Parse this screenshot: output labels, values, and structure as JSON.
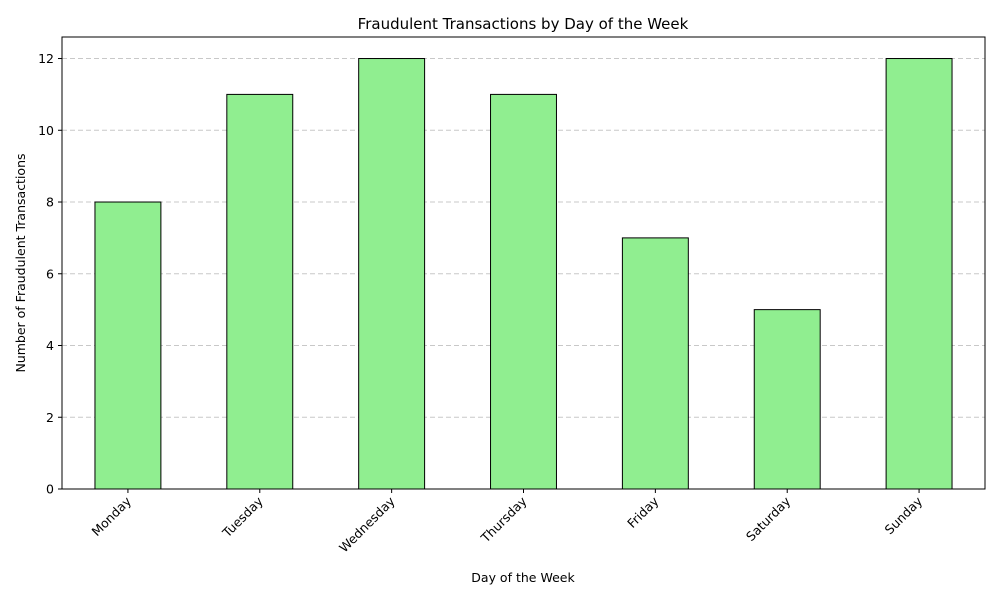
{
  "chart_data": {
    "type": "bar",
    "title": "Fraudulent Transactions by Day of the Week",
    "xlabel": "Day of the Week",
    "ylabel": "Number of Fraudulent Transactions",
    "categories": [
      "Monday",
      "Tuesday",
      "Wednesday",
      "Thursday",
      "Friday",
      "Saturday",
      "Sunday"
    ],
    "values": [
      8,
      11,
      12,
      11,
      7,
      5,
      12
    ],
    "ylim": [
      0,
      12.6
    ],
    "yticks": [
      "0",
      "2",
      "4",
      "6",
      "8",
      "10",
      "12"
    ],
    "grid": "y-dashed",
    "legend": "none",
    "bar_color": "#90EE90",
    "edge_color": "#000000",
    "grid_color": "#c8c8c8"
  }
}
